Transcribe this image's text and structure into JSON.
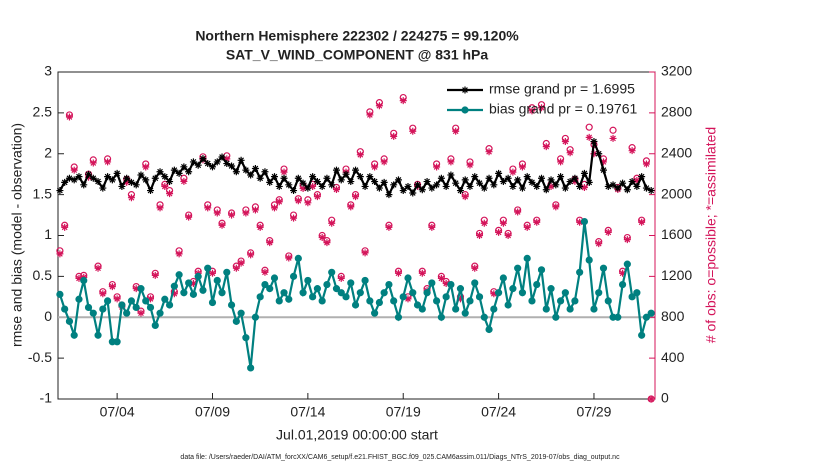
{
  "chart_data": {
    "type": "line",
    "title": "Northern Hemisphere 222302 / 224275 = 99.120%",
    "subtitle": "SAT_V_WIND_COMPONENT @ 831 hPa",
    "xlabel": "Jul.01,2019 00:00:00 start",
    "ylabel": "rmse and bias (model - observation)",
    "y2label": "# of obs: o=possible; *=assimilated",
    "footnote": "data file: /Users/raeder/DAI/ATM_forcXX/CAM6_setup/f.e21.FHIST_BGC.f09_025.CAM6assim.011/Diags_NTrS_2019-07/obs_diag_output.nc",
    "x": [
      0,
      0.25,
      0.5,
      0.75,
      1,
      1.25,
      1.5,
      1.75,
      2,
      2.25,
      2.5,
      2.75,
      3,
      3.25,
      3.5,
      3.75,
      4,
      4.25,
      4.5,
      4.75,
      5,
      5.25,
      5.5,
      5.75,
      6,
      6.25,
      6.5,
      6.75,
      7,
      7.25,
      7.5,
      7.75,
      8,
      8.25,
      8.5,
      8.75,
      9,
      9.25,
      9.5,
      9.75,
      10,
      10.25,
      10.5,
      10.75,
      11,
      11.25,
      11.5,
      11.75,
      12,
      12.25,
      12.5,
      12.75,
      13,
      13.25,
      13.5,
      13.75,
      14,
      14.25,
      14.5,
      14.75,
      15,
      15.25,
      15.5,
      15.75,
      16,
      16.25,
      16.5,
      16.75,
      17,
      17.25,
      17.5,
      17.75,
      18,
      18.25,
      18.5,
      18.75,
      19,
      19.25,
      19.5,
      19.75,
      20,
      20.25,
      20.5,
      20.75,
      21,
      21.25,
      21.5,
      21.75,
      22,
      22.25,
      22.5,
      22.75,
      23,
      23.25,
      23.5,
      23.75,
      24,
      24.25,
      24.5,
      24.75,
      25,
      25.25,
      25.5,
      25.75,
      26,
      26.25,
      26.5,
      26.75,
      27,
      27.25,
      27.5,
      27.75,
      28,
      28.25,
      28.5,
      28.75,
      29,
      29.25,
      29.5,
      29.75,
      30,
      30.25,
      30.5,
      30.75,
      31
    ],
    "xlim": [
      -0.1,
      31.2
    ],
    "xticks": [
      {
        "value": 3,
        "label": "07/04"
      },
      {
        "value": 8,
        "label": "07/09"
      },
      {
        "value": 13,
        "label": "07/14"
      },
      {
        "value": 18,
        "label": "07/19"
      },
      {
        "value": 23,
        "label": "07/24"
      },
      {
        "value": 28,
        "label": "07/29"
      }
    ],
    "ylim": [
      -1,
      3
    ],
    "yticks": [
      -1,
      -0.5,
      0,
      0.5,
      1,
      1.5,
      2,
      2.5,
      3
    ],
    "y2lim": [
      0,
      3200
    ],
    "y2ticks": [
      0,
      400,
      800,
      1200,
      1600,
      2000,
      2400,
      2800,
      3200
    ],
    "y2color": "#d4145a",
    "legend": "upper right",
    "legend_color": "#1a3cff",
    "zero_line_color": "#b0b0b0",
    "series": [
      {
        "name": "rmse grand pr = 1.6995",
        "color": "#000000",
        "marker": "*",
        "line": true,
        "values": [
          1.55,
          1.65,
          1.7,
          1.68,
          1.72,
          1.62,
          1.75,
          1.7,
          1.66,
          1.58,
          1.72,
          1.68,
          1.76,
          1.6,
          1.7,
          1.65,
          1.62,
          1.74,
          1.68,
          1.55,
          1.7,
          1.78,
          1.72,
          1.66,
          1.8,
          1.76,
          1.84,
          1.78,
          1.9,
          1.86,
          1.94,
          1.88,
          1.84,
          1.9,
          1.96,
          1.88,
          1.85,
          1.78,
          1.92,
          1.8,
          1.74,
          1.82,
          1.7,
          1.78,
          1.65,
          1.72,
          1.6,
          1.7,
          1.62,
          1.55,
          1.7,
          1.64,
          1.58,
          1.72,
          1.66,
          1.6,
          1.7,
          1.62,
          1.8,
          1.68,
          1.75,
          1.66,
          1.8,
          1.72,
          1.6,
          1.72,
          1.66,
          1.58,
          1.65,
          1.5,
          1.62,
          1.68,
          1.55,
          1.6,
          1.52,
          1.62,
          1.56,
          1.66,
          1.58,
          1.62,
          1.7,
          1.6,
          1.74,
          1.64,
          1.55,
          1.68,
          1.6,
          1.72,
          1.64,
          1.58,
          1.7,
          1.62,
          1.76,
          1.66,
          1.7,
          1.6,
          1.68,
          1.58,
          1.72,
          1.65,
          1.6,
          1.7,
          1.56,
          1.68,
          1.62,
          1.72,
          1.58,
          1.66,
          1.7,
          1.6,
          1.76,
          1.65,
          2.15,
          2.0,
          1.8,
          1.6,
          1.62,
          1.58,
          1.64,
          1.56,
          1.66,
          1.6,
          1.72,
          1.58,
          1.55
        ]
      },
      {
        "name": "bias grand pr = 0.19761",
        "color": "#008080",
        "marker": "o",
        "line": true,
        "values": [
          0.28,
          0.1,
          -0.05,
          -0.22,
          0.22,
          0.45,
          0.12,
          0.05,
          -0.22,
          0.1,
          0.2,
          -0.3,
          -0.3,
          0.15,
          0.05,
          0.2,
          0.12,
          0.35,
          0.2,
          0.12,
          -0.1,
          0.05,
          0.22,
          0.15,
          0.38,
          0.52,
          0.3,
          0.42,
          0.28,
          0.5,
          0.33,
          0.6,
          0.18,
          0.45,
          0.3,
          0.55,
          0.15,
          -0.05,
          0.05,
          -0.25,
          -0.62,
          0.0,
          0.25,
          0.4,
          0.35,
          0.48,
          0.2,
          0.3,
          0.22,
          0.5,
          0.72,
          0.3,
          0.45,
          0.25,
          0.35,
          0.2,
          0.4,
          0.55,
          0.35,
          0.3,
          0.25,
          0.42,
          0.15,
          0.3,
          0.45,
          0.2,
          0.05,
          0.18,
          0.3,
          0.4,
          0.2,
          0.0,
          0.25,
          0.48,
          0.3,
          0.15,
          0.1,
          0.3,
          0.42,
          0.2,
          0.0,
          0.25,
          0.4,
          0.1,
          0.35,
          0.05,
          0.2,
          0.42,
          0.25,
          0.0,
          -0.15,
          0.1,
          0.3,
          0.48,
          0.15,
          0.35,
          0.6,
          0.3,
          0.72,
          0.2,
          0.4,
          0.58,
          0.1,
          0.35,
          0.0,
          0.2,
          0.3,
          0.1,
          0.2,
          0.55,
          1.17,
          0.7,
          0.1,
          0.3,
          0.6,
          0.2,
          0.0,
          0.0,
          0.4,
          0.65,
          0.25,
          0.3,
          -0.22,
          0.0,
          0.05
        ]
      },
      {
        "color": "#d4145a",
        "marker": "o",
        "line": false,
        "axis": "y2",
        "values": [
          1450,
          1700,
          2780,
          2270,
          1200,
          1210,
          2200,
          2340,
          1300,
          1050,
          2350,
          1120,
          1000,
          920,
          2150,
          2000,
          1100,
          860,
          2300,
          1000,
          1230,
          1900,
          2100,
          2040,
          1050,
          1450,
          2160,
          1800,
          1150,
          1250,
          2370,
          1900,
          1250,
          1850,
          1720,
          2380,
          1820,
          1300,
          1350,
          1850,
          1430,
          1880,
          1700,
          1260,
          1550,
          1900,
          1950,
          2250,
          1400,
          1800,
          1960,
          2090,
          1950,
          2100,
          2000,
          1600,
          1550,
          1750,
          2070,
          1200,
          2250,
          1900,
          2000,
          2420,
          1450,
          2810,
          2300,
          2900,
          2350,
          1700,
          2600,
          1250,
          2950,
          1000,
          2650,
          2100,
          1250,
          1080,
          1700,
          2300,
          1200,
          1150,
          2350,
          2650,
          1000,
          2000,
          2320,
          1300,
          1620,
          1750,
          2450,
          1050,
          1650,
          1750,
          1620,
          2250,
          1850,
          2300,
          1700,
          2850,
          1750,
          2880,
          2500,
          2100,
          1900,
          2350,
          2550,
          2440,
          2150,
          1750,
          2100,
          2660,
          2490,
          1540,
          2350,
          1650,
          2630,
          2070,
          1250,
          1580,
          2460,
          2160,
          1750,
          2330,
          0
        ]
      },
      {
        "color": "#d4145a",
        "marker": "*",
        "line": false,
        "axis": "y2",
        "values": [
          1420,
          1680,
          2760,
          2240,
          1180,
          1190,
          2170,
          2310,
          1280,
          1030,
          2320,
          1100,
          980,
          900,
          2120,
          1970,
          1080,
          840,
          2270,
          980,
          1210,
          1870,
          2080,
          2010,
          1030,
          1420,
          2130,
          1780,
          1130,
          1230,
          2340,
          1870,
          1230,
          1820,
          1700,
          2350,
          1800,
          1280,
          1330,
          1820,
          1410,
          1850,
          1680,
          1240,
          1530,
          1870,
          1930,
          2220,
          1380,
          1770,
          1940,
          2060,
          1920,
          2080,
          1980,
          1580,
          1530,
          1720,
          2050,
          1180,
          2220,
          1880,
          1980,
          2390,
          1430,
          2780,
          2270,
          2870,
          2320,
          1680,
          2570,
          1230,
          2920,
          980,
          2620,
          2080,
          1230,
          1060,
          1680,
          2270,
          1180,
          1130,
          2320,
          2620,
          980,
          1980,
          2290,
          1280,
          1600,
          1720,
          2420,
          1030,
          1630,
          1720,
          1600,
          2220,
          1830,
          2270,
          1680,
          2820,
          1730,
          2850,
          2470,
          2080,
          1880,
          2320,
          2520,
          2410,
          2130,
          1730,
          2070,
          2560,
          2400,
          1520,
          2320,
          1630,
          2550,
          2050,
          1230,
          1560,
          2430,
          2140,
          1730,
          2300,
          0
        ]
      }
    ]
  }
}
